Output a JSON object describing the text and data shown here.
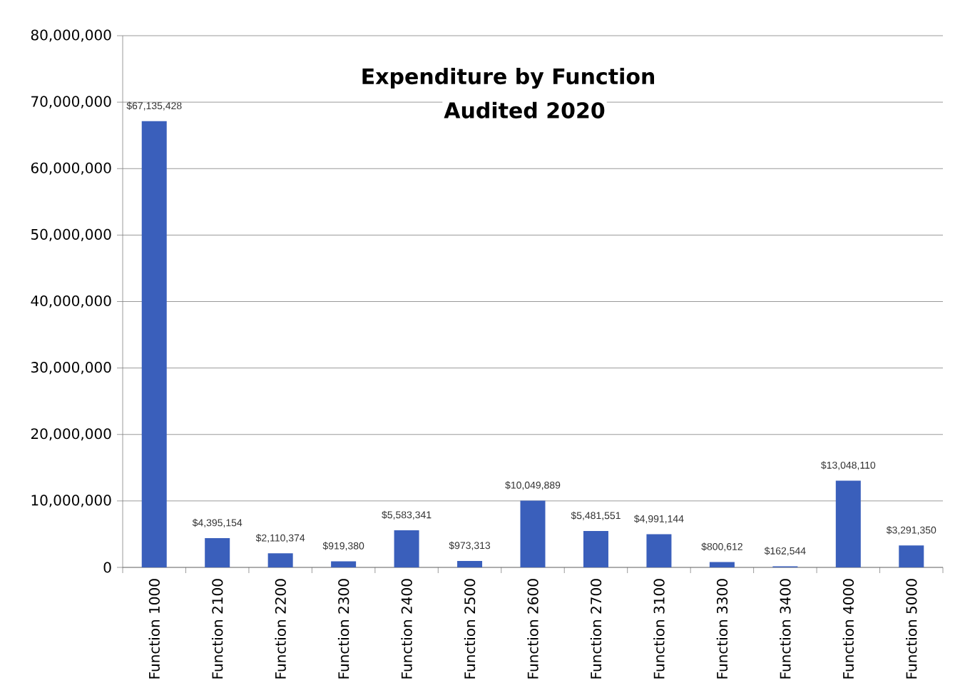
{
  "chart_data": {
    "type": "bar",
    "title": "Expenditure by Function",
    "subtitle": "Audited 2020",
    "categories": [
      "Function 1000",
      "Function 2100",
      "Function 2200",
      "Function 2300",
      "Function 2400",
      "Function 2500",
      "Function 2600",
      "Function 2700",
      "Function 3100",
      "Function 3300",
      "Function 3400",
      "Function 4000",
      "Function 5000"
    ],
    "values": [
      67135428,
      4395154,
      2110374,
      919380,
      5583341,
      973313,
      10049889,
      5481551,
      4991144,
      800612,
      162544,
      13048110,
      3291350
    ],
    "value_labels": [
      "$67,135,428",
      "$4,395,154",
      "$2,110,374",
      "$919,380",
      "$5,583,341",
      "$973,313",
      "$10,049,889",
      "$5,481,551",
      "$4,991,144",
      "$800,612",
      "$162,544",
      "$13,048,110",
      "$3,291,350"
    ],
    "color": "#3a5fbb",
    "ylim": [
      0,
      80000000
    ],
    "yticks": [
      {
        "value": 0,
        "label": "0"
      },
      {
        "value": 10000000,
        "label": "10,000,000"
      },
      {
        "value": 20000000,
        "label": "20,000,000"
      },
      {
        "value": 30000000,
        "label": "30,000,000"
      },
      {
        "value": 40000000,
        "label": "40,000,000"
      },
      {
        "value": 50000000,
        "label": "50,000,000"
      },
      {
        "value": 60000000,
        "label": "60,000,000"
      },
      {
        "value": 70000000,
        "label": "70,000,000"
      },
      {
        "value": 80000000,
        "label": "80,000,000"
      }
    ],
    "grid": "y"
  }
}
